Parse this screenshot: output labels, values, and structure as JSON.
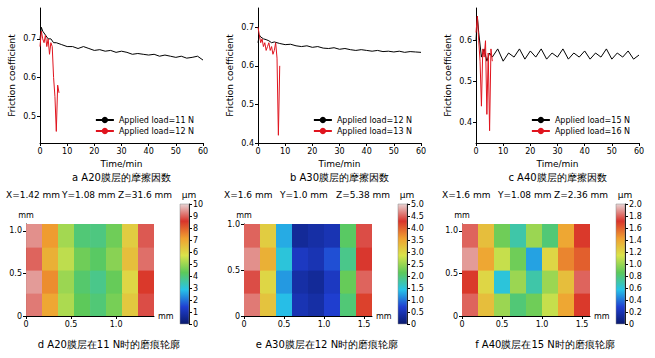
{
  "chart_data": [
    {
      "type": "line",
      "title": "a A20膜层的摩擦因数",
      "x_label": "Time/min",
      "y_label": "Friction coefficient",
      "xlim": [
        0,
        60
      ],
      "xticks": [
        0,
        10,
        20,
        30,
        40,
        50,
        60
      ],
      "ylim": [
        0.43,
        0.78
      ],
      "yticks": [
        0.5,
        0.6,
        0.7
      ],
      "grid": false,
      "legend": "lower right",
      "series": [
        {
          "name": "Applied load=11 N",
          "color": "#000000",
          "x": [
            0,
            0.5,
            1,
            2,
            3,
            4,
            5,
            6,
            8,
            10,
            12,
            14,
            16,
            18,
            20,
            22,
            24,
            26,
            28,
            30,
            32,
            34,
            36,
            38,
            40,
            42,
            44,
            46,
            48,
            50,
            52,
            54,
            56,
            58,
            60
          ],
          "values": [
            0.7,
            0.73,
            0.72,
            0.71,
            0.7,
            0.7,
            0.69,
            0.69,
            0.685,
            0.68,
            0.68,
            0.675,
            0.68,
            0.675,
            0.67,
            0.672,
            0.668,
            0.67,
            0.665,
            0.668,
            0.665,
            0.66,
            0.662,
            0.66,
            0.658,
            0.66,
            0.655,
            0.658,
            0.655,
            0.652,
            0.655,
            0.65,
            0.652,
            0.655,
            0.645
          ]
        },
        {
          "name": "Applied load=12 N",
          "color": "#e0141e",
          "x": [
            0,
            0.5,
            1,
            1.5,
            2,
            2.5,
            3,
            3.5,
            4,
            4.5,
            5,
            5.5,
            6,
            6.5,
            7
          ],
          "values": [
            0.68,
            0.72,
            0.7,
            0.69,
            0.71,
            0.68,
            0.7,
            0.66,
            0.69,
            0.68,
            0.6,
            0.55,
            0.46,
            0.58,
            0.56
          ]
        }
      ]
    },
    {
      "type": "line",
      "title": "b A30膜层的摩擦因数",
      "x_label": "Time/min",
      "y_label": "Friction coefficient",
      "xlim": [
        0,
        60
      ],
      "xticks": [
        0,
        10,
        20,
        30,
        40,
        50,
        60
      ],
      "ylim": [
        0.4,
        0.75
      ],
      "yticks": [
        0.4,
        0.5,
        0.6,
        0.7
      ],
      "grid": false,
      "legend": "lower right",
      "series": [
        {
          "name": "Applied load=12 N",
          "color": "#000000",
          "x": [
            0,
            0.5,
            1,
            2,
            3,
            4,
            5,
            6,
            8,
            10,
            12,
            14,
            16,
            18,
            20,
            22,
            24,
            26,
            28,
            30,
            32,
            34,
            36,
            38,
            40,
            42,
            44,
            46,
            48,
            50,
            52,
            54,
            56,
            58,
            60
          ],
          "values": [
            0.66,
            0.68,
            0.675,
            0.67,
            0.668,
            0.665,
            0.66,
            0.662,
            0.658,
            0.655,
            0.656,
            0.652,
            0.65,
            0.652,
            0.648,
            0.65,
            0.646,
            0.645,
            0.647,
            0.643,
            0.645,
            0.642,
            0.64,
            0.642,
            0.64,
            0.638,
            0.64,
            0.637,
            0.638,
            0.636,
            0.638,
            0.635,
            0.637,
            0.636,
            0.635
          ]
        },
        {
          "name": "Applied load=13 N",
          "color": "#e0141e",
          "x": [
            0,
            0.5,
            1,
            1.5,
            2,
            2.5,
            3,
            3.5,
            4,
            4.5,
            5,
            5.5,
            6,
            6.5,
            7,
            7.5,
            8
          ],
          "values": [
            0.7,
            0.68,
            0.66,
            0.67,
            0.65,
            0.66,
            0.64,
            0.65,
            0.66,
            0.64,
            0.65,
            0.63,
            0.64,
            0.66,
            0.62,
            0.42,
            0.6
          ]
        }
      ]
    },
    {
      "type": "line",
      "title": "c A40膜层的摩擦因数",
      "x_label": "Time/min",
      "y_label": "Friction coefficient",
      "xlim": [
        0,
        60
      ],
      "xticks": [
        0,
        10,
        20,
        30,
        40,
        50,
        60
      ],
      "ylim": [
        0.35,
        0.68
      ],
      "yticks": [
        0.4,
        0.5,
        0.6
      ],
      "grid": false,
      "legend": "lower right",
      "series": [
        {
          "name": "Applied load=15 N",
          "color": "#000000",
          "x": [
            0,
            0.5,
            1,
            2,
            3,
            4,
            5,
            6,
            8,
            10,
            12,
            14,
            16,
            18,
            20,
            22,
            24,
            26,
            28,
            30,
            32,
            34,
            36,
            38,
            40,
            42,
            44,
            46,
            48,
            50,
            52,
            54,
            56,
            58,
            60
          ],
          "values": [
            0.6,
            0.66,
            0.62,
            0.56,
            0.58,
            0.55,
            0.57,
            0.56,
            0.58,
            0.55,
            0.57,
            0.56,
            0.58,
            0.555,
            0.575,
            0.56,
            0.58,
            0.555,
            0.57,
            0.56,
            0.58,
            0.555,
            0.57,
            0.56,
            0.575,
            0.555,
            0.57,
            0.56,
            0.58,
            0.555,
            0.57,
            0.56,
            0.575,
            0.555,
            0.565
          ]
        },
        {
          "name": "Applied load=16 N",
          "color": "#e0141e",
          "x": [
            0,
            0.5,
            1,
            1.5,
            2,
            2.5,
            3,
            3.5,
            4,
            4.5,
            5,
            5.5,
            6
          ],
          "values": [
            0.62,
            0.66,
            0.6,
            0.55,
            0.44,
            0.58,
            0.56,
            0.6,
            0.42,
            0.57,
            0.38,
            0.58,
            0.55
          ]
        }
      ]
    },
    {
      "type": "heatmap",
      "title": "d A20膜层在11 N时的磨痕轮廓",
      "annotations": [
        "X=1.42 mm",
        "Y=1.08 mm",
        "Z=31.6 mm"
      ],
      "x_label": "mm",
      "y_label": "mm",
      "xlim": [
        0,
        1.42
      ],
      "xticks": [
        0,
        0.5,
        {
          "value": 1,
          "label": "1.0"
        }
      ],
      "ylim": [
        0,
        1.08
      ],
      "yticks": [
        0,
        0.5,
        {
          "value": 1,
          "label": "1.0"
        }
      ],
      "x": [
        0.089,
        0.266,
        0.444,
        0.621,
        0.799,
        0.976,
        1.154,
        1.331
      ],
      "y": [
        0.135,
        0.405,
        0.675,
        0.945
      ],
      "cells": [
        [
          9.2,
          7.0,
          5.2,
          4.3,
          4.0,
          4.6,
          6.3,
          8.8
        ],
        [
          9.5,
          7.4,
          5.0,
          4.1,
          3.8,
          4.4,
          6.0,
          8.5
        ],
        [
          9.0,
          6.8,
          5.4,
          4.5,
          4.2,
          4.8,
          6.5,
          9.1
        ],
        [
          9.4,
          7.2,
          5.1,
          4.0,
          3.9,
          4.5,
          6.2,
          8.9
        ]
      ],
      "clim": [
        0,
        10
      ],
      "cticks": [
        0,
        1,
        2,
        3,
        4,
        5,
        6,
        7,
        8,
        9,
        10
      ],
      "clabel": "µm"
    },
    {
      "type": "heatmap",
      "title": "e A30膜层在12 N时的磨痕轮廓",
      "annotations": [
        "X=1.6 mm",
        "Y=1.0 mm",
        "Z=5.38 mm"
      ],
      "x_label": "mm",
      "y_label": "mm",
      "xlim": [
        0,
        1.6
      ],
      "xticks": [
        0,
        0.5,
        {
          "value": 1,
          "label": "1.0"
        },
        1.5
      ],
      "ylim": [
        0,
        1.0
      ],
      "yticks": [
        0,
        0.5,
        {
          "value": 1,
          "label": "1.0"
        }
      ],
      "x": [
        0.1,
        0.3,
        0.5,
        0.7,
        0.9,
        1.1,
        1.3,
        1.5
      ],
      "y": [
        0.125,
        0.375,
        0.625,
        0.875
      ],
      "cells": [
        [
          4.6,
          3.2,
          1.4,
          0.5,
          0.4,
          0.7,
          2.0,
          4.2
        ],
        [
          4.4,
          3.0,
          1.2,
          0.4,
          0.3,
          0.6,
          2.2,
          4.5
        ],
        [
          4.7,
          3.4,
          1.5,
          0.6,
          0.5,
          0.8,
          1.9,
          4.3
        ],
        [
          4.5,
          3.1,
          1.3,
          0.3,
          0.4,
          0.5,
          2.1,
          4.4
        ]
      ],
      "clim": [
        0,
        5
      ],
      "cticks": [
        0,
        0.5,
        {
          "value": 1,
          "label": "1.0"
        },
        1.5,
        {
          "value": 2,
          "label": "2.0"
        },
        2.5,
        {
          "value": 3,
          "label": "3.0"
        },
        3.5,
        {
          "value": 4,
          "label": "4.0"
        },
        4.5,
        {
          "value": 5,
          "label": "5.0"
        }
      ],
      "clabel": "µm"
    },
    {
      "type": "heatmap",
      "title": "f A40膜层在15 N时的磨痕轮廓",
      "annotations": [
        "X=1.6 mm",
        "Y=1.08 mm",
        "Z=2.36 mm"
      ],
      "x_label": "mm",
      "y_label": "mm",
      "xlim": [
        0,
        1.6
      ],
      "xticks": [
        0,
        0.5,
        {
          "value": 1,
          "label": "1.0"
        },
        1.5
      ],
      "ylim": [
        0,
        1.08
      ],
      "yticks": [
        0,
        0.5,
        {
          "value": 1,
          "label": "1.0"
        }
      ],
      "x": [
        0.1,
        0.3,
        0.5,
        0.7,
        0.9,
        1.1,
        1.3,
        1.5
      ],
      "y": [
        0.135,
        0.405,
        0.675,
        0.945
      ],
      "cells": [
        [
          1.8,
          1.3,
          1.0,
          0.8,
          0.9,
          1.1,
          1.4,
          1.7
        ],
        [
          1.7,
          1.2,
          0.6,
          1.0,
          0.7,
          1.0,
          1.3,
          1.8
        ],
        [
          1.9,
          1.4,
          1.1,
          0.9,
          0.5,
          1.2,
          1.5,
          1.6
        ],
        [
          1.8,
          1.3,
          0.9,
          0.7,
          1.0,
          0.8,
          1.4,
          1.7
        ]
      ],
      "clim": [
        0,
        2
      ],
      "cticks": [
        0,
        0.2,
        0.4,
        0.6,
        0.8,
        {
          "value": 1,
          "label": "1.0"
        },
        1.2,
        1.4,
        1.6,
        1.8,
        {
          "value": 2,
          "label": "2.0"
        }
      ],
      "clabel": "µm"
    }
  ]
}
